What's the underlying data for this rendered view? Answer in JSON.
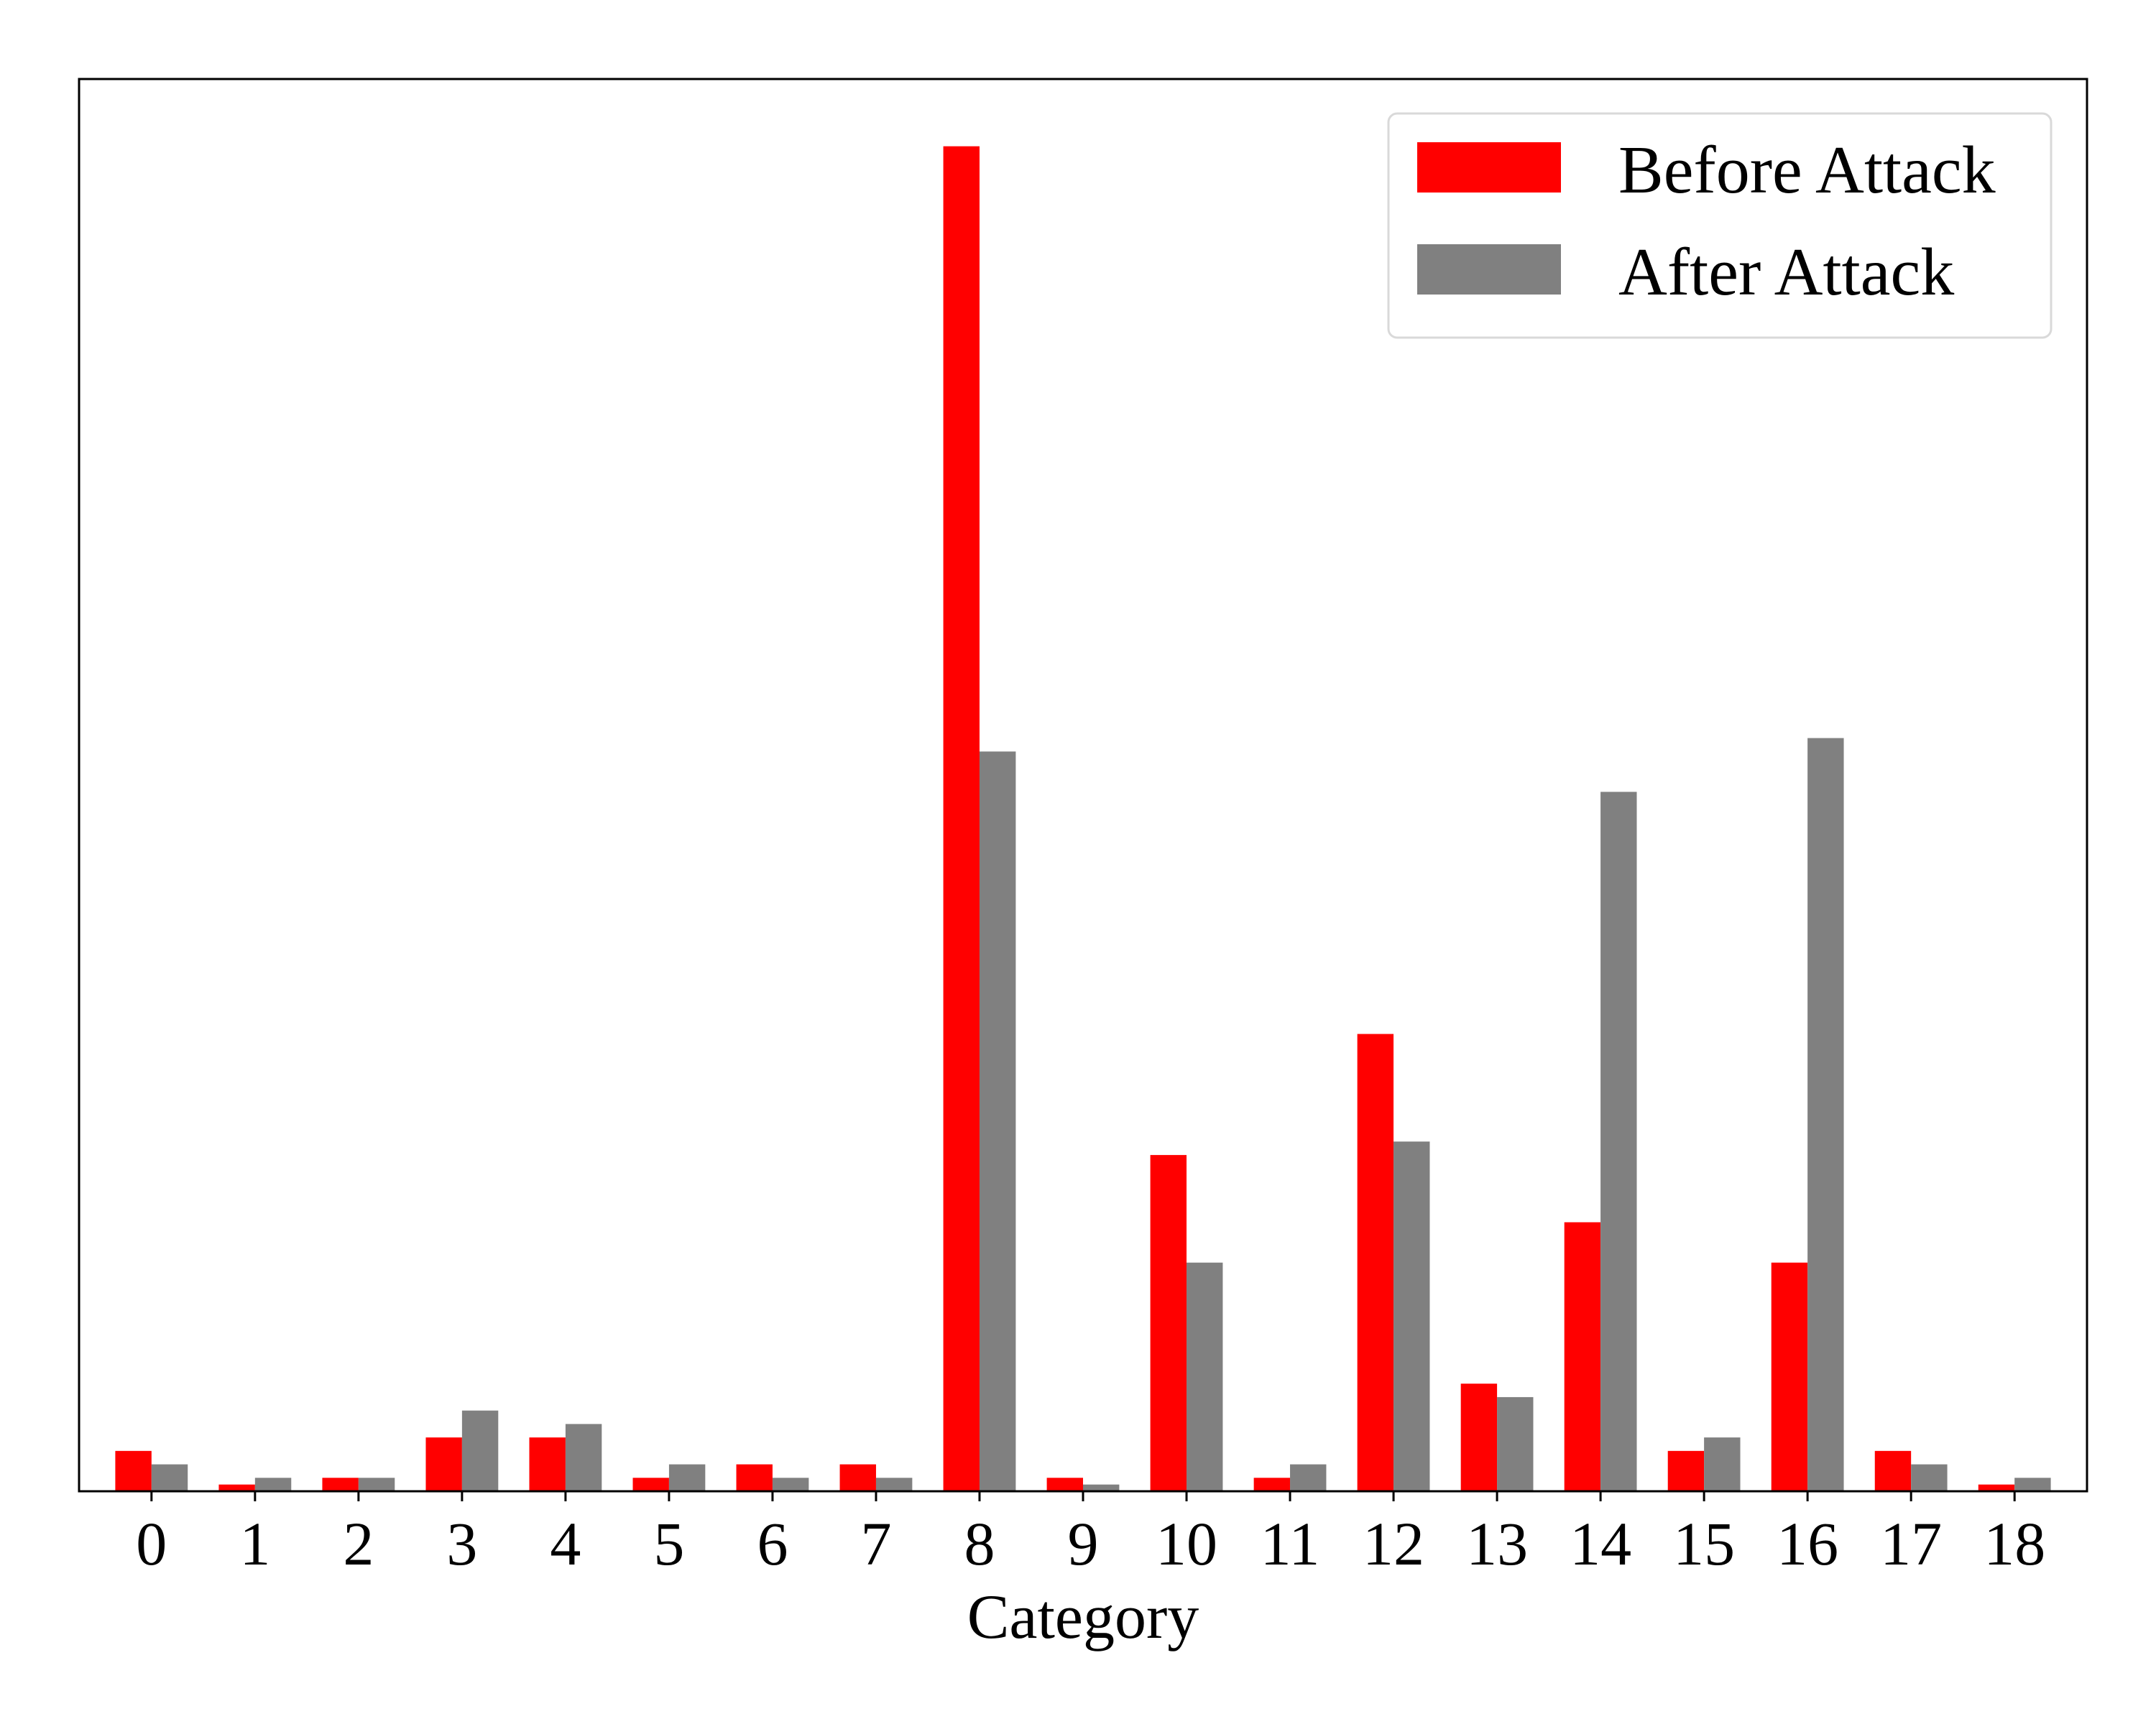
{
  "chart_data": {
    "type": "bar",
    "title": "",
    "xlabel": "Category",
    "ylabel": "",
    "categories": [
      "0",
      "1",
      "2",
      "3",
      "4",
      "5",
      "6",
      "7",
      "8",
      "9",
      "10",
      "11",
      "12",
      "13",
      "14",
      "15",
      "16",
      "17",
      "18"
    ],
    "series": [
      {
        "name": "Before Attack",
        "color": "#ff0000",
        "values": [
          3,
          0.5,
          1,
          4,
          4,
          1,
          2,
          2,
          100,
          1,
          25,
          1,
          34,
          8,
          20,
          3,
          17,
          3,
          0.5
        ]
      },
      {
        "name": "After Attack",
        "color": "#808080",
        "values": [
          2,
          1,
          1,
          6,
          5,
          2,
          1,
          1,
          55,
          0.5,
          17,
          2,
          26,
          7,
          52,
          4,
          56,
          2,
          1
        ]
      }
    ],
    "ylim": [
      0,
      105
    ],
    "y_ticks_shown": false,
    "grid": false,
    "legend_position": "top-right"
  }
}
